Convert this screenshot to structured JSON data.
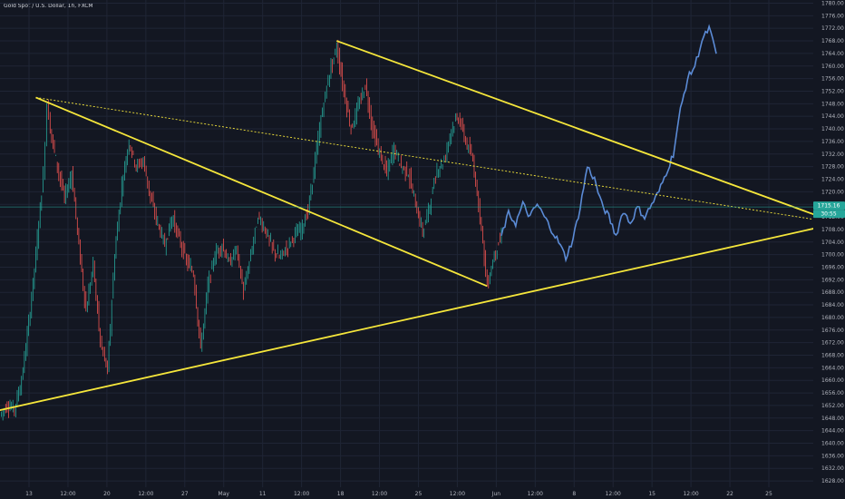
{
  "symbol_title": "Gold Spot / U.S. Dollar, 1h, FXCM",
  "colors": {
    "background": "#131722",
    "grid": "#1f2535",
    "up": "#26a69a",
    "down": "#ef5350",
    "projection": "#5b8bd6",
    "trendline": "#f5e63b",
    "price_tag": "#26a69a",
    "current_line": "#26a69a"
  },
  "chart_data": {
    "type": "line",
    "title": "Gold Spot / U.S. Dollar, 1h, FXCM",
    "xlabel": "",
    "ylabel": "",
    "grid": true,
    "x_ticks": [
      "13",
      "12:00",
      "20",
      "12:00",
      "27",
      "May",
      "11",
      "12:00",
      "18",
      "12:00",
      "25",
      "12:00",
      "Jun",
      "12:00",
      "8",
      "12:00",
      "15",
      "12:00",
      "22",
      "25"
    ],
    "y_ticks": [
      1628,
      1632,
      1636,
      1640,
      1644,
      1648,
      1652,
      1656,
      1660,
      1664,
      1668,
      1672,
      1676,
      1680,
      1684,
      1688,
      1692,
      1696,
      1700,
      1704,
      1708,
      1712,
      1716,
      1720,
      1724,
      1728,
      1732,
      1736,
      1740,
      1744,
      1748,
      1752,
      1756,
      1760,
      1764,
      1768,
      1772,
      1776,
      1780
    ],
    "ylim": [
      1626,
      1781
    ],
    "x_range": [
      0,
      100
    ],
    "current_price_tags": [
      "1715.16",
      "30:55"
    ],
    "current_price": 1715.16,
    "price_path": [
      [
        0,
        1649
      ],
      [
        1,
        1652
      ],
      [
        2,
        1651
      ],
      [
        3,
        1660
      ],
      [
        4,
        1678
      ],
      [
        5,
        1700
      ],
      [
        6,
        1725
      ],
      [
        6.5,
        1748
      ],
      [
        7,
        1740
      ],
      [
        8,
        1728
      ],
      [
        9,
        1718
      ],
      [
        10,
        1726
      ],
      [
        11,
        1703
      ],
      [
        12,
        1682
      ],
      [
        13,
        1697
      ],
      [
        14,
        1672
      ],
      [
        15,
        1663
      ],
      [
        16,
        1700
      ],
      [
        17,
        1722
      ],
      [
        18,
        1736
      ],
      [
        19,
        1728
      ],
      [
        20,
        1730
      ],
      [
        21,
        1718
      ],
      [
        22,
        1710
      ],
      [
        23,
        1703
      ],
      [
        24,
        1712
      ],
      [
        25,
        1705
      ],
      [
        26,
        1698
      ],
      [
        27,
        1694
      ],
      [
        28,
        1670
      ],
      [
        29,
        1690
      ],
      [
        30,
        1700
      ],
      [
        31,
        1703
      ],
      [
        32,
        1697
      ],
      [
        33,
        1702
      ],
      [
        34,
        1688
      ],
      [
        35,
        1700
      ],
      [
        36,
        1712
      ],
      [
        37,
        1708
      ],
      [
        38,
        1702
      ],
      [
        39,
        1699
      ],
      [
        40,
        1702
      ],
      [
        41,
        1706
      ],
      [
        42,
        1708
      ],
      [
        43,
        1714
      ],
      [
        44,
        1730
      ],
      [
        45,
        1746
      ],
      [
        46,
        1758
      ],
      [
        47,
        1766
      ],
      [
        48,
        1752
      ],
      [
        49,
        1740
      ],
      [
        50,
        1747
      ],
      [
        51,
        1754
      ],
      [
        52,
        1740
      ],
      [
        53,
        1732
      ],
      [
        54,
        1726
      ],
      [
        55,
        1734
      ],
      [
        56,
        1728
      ],
      [
        57,
        1726
      ],
      [
        58,
        1716
      ],
      [
        59,
        1707
      ],
      [
        60,
        1716
      ],
      [
        61,
        1727
      ],
      [
        62,
        1730
      ],
      [
        63,
        1740
      ],
      [
        64,
        1744
      ],
      [
        65,
        1736
      ],
      [
        66,
        1730
      ],
      [
        67,
        1713
      ],
      [
        68,
        1690
      ],
      [
        69,
        1700
      ],
      [
        70,
        1706
      ]
    ],
    "projection_path": [
      [
        70,
        1706
      ],
      [
        71,
        1713
      ],
      [
        72,
        1710
      ],
      [
        73,
        1716
      ],
      [
        74,
        1712
      ],
      [
        75,
        1716
      ],
      [
        76,
        1712
      ],
      [
        77,
        1708
      ],
      [
        78,
        1704
      ],
      [
        79,
        1699
      ],
      [
        80,
        1705
      ],
      [
        81,
        1715
      ],
      [
        82,
        1728
      ],
      [
        83,
        1724
      ],
      [
        84,
        1716
      ],
      [
        85,
        1712
      ],
      [
        86,
        1706
      ],
      [
        87,
        1714
      ],
      [
        88,
        1710
      ],
      [
        89,
        1715
      ],
      [
        90,
        1712
      ],
      [
        91,
        1716
      ],
      [
        92,
        1720
      ],
      [
        93,
        1726
      ],
      [
        94,
        1732
      ],
      [
        95,
        1746
      ],
      [
        96,
        1756
      ],
      [
        97,
        1760
      ],
      [
        98,
        1768
      ],
      [
        99,
        1772
      ],
      [
        100,
        1764
      ]
    ],
    "trendlines": [
      {
        "name": "lower-support",
        "style": "solid",
        "points": [
          [
            -1,
            1650
          ],
          [
            117,
            1710
          ]
        ]
      },
      {
        "name": "first-resistance",
        "style": "solid",
        "points": [
          [
            5,
            1750
          ],
          [
            68,
            1690
          ]
        ]
      },
      {
        "name": "upper-resistance",
        "style": "solid",
        "points": [
          [
            47,
            1768
          ],
          [
            117,
            1710
          ]
        ]
      },
      {
        "name": "dotted-midline",
        "style": "dotted",
        "points": [
          [
            5,
            1750
          ],
          [
            117,
            1710
          ]
        ]
      }
    ]
  }
}
